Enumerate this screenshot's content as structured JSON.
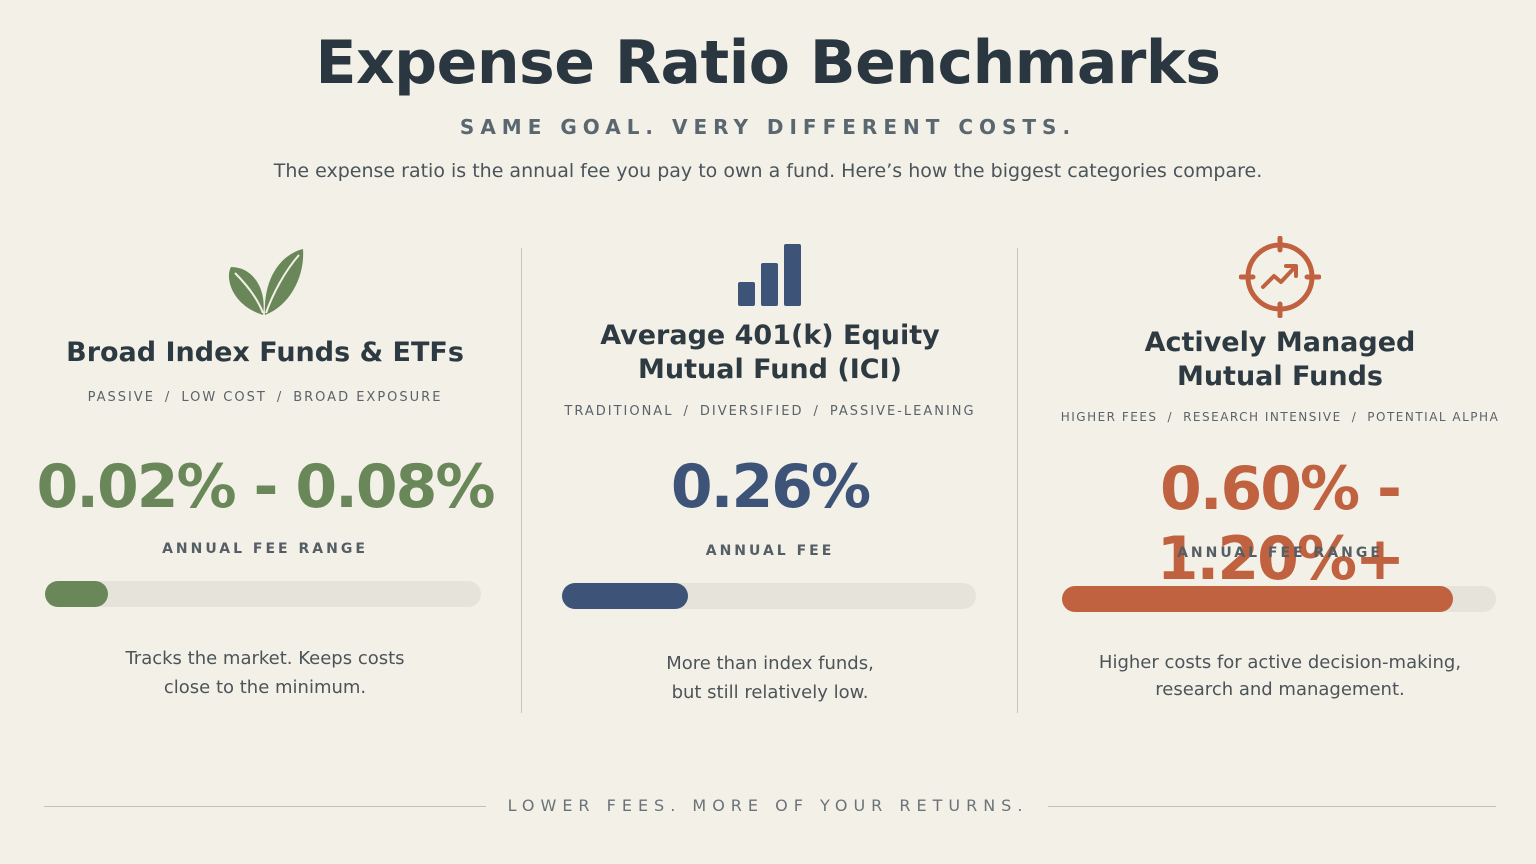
{
  "header": {
    "title": "Expense Ratio Benchmarks",
    "subtitle": "SAME GOAL. VERY DIFFERENT COSTS.",
    "intro": "The expense ratio is the annual fee you pay to own a fund. Here’s how the biggest categories compare."
  },
  "columns": [
    {
      "icon": "leaf-icon",
      "title": "Broad Index Funds & ETFs",
      "tags": [
        "PASSIVE",
        "LOW COST",
        "BROAD EXPOSURE"
      ],
      "value": "0.02% - 0.08%",
      "value_label": "ANNUAL FEE RANGE",
      "bar_fill": 0.145,
      "color": "#6a875a",
      "desc_line1": "Tracks the market. Keeps costs",
      "desc_line2": "close to the minimum."
    },
    {
      "icon": "bar-chart-icon",
      "title_line1": "Average 401(k) Equity",
      "title_line2": "Mutual Fund (ICI)",
      "tags": [
        "TRADITIONAL",
        "DIVERSIFIED",
        "PASSIVE-LEANING"
      ],
      "value": "0.26%",
      "value_label": "ANNUAL FEE",
      "bar_fill": 0.305,
      "color": "#3d5478",
      "desc_line1": "More than index funds,",
      "desc_line2": "but still relatively low."
    },
    {
      "icon": "target-trend-icon",
      "title_line1": "Actively Managed",
      "title_line2": "Mutual Funds",
      "tags": [
        "HIGHER FEES",
        "RESEARCH INTENSIVE",
        "POTENTIAL ALPHA"
      ],
      "value": "0.60% - 1.20%+",
      "value_label": "ANNUAL FEE RANGE",
      "bar_fill": 0.9,
      "color": "#c0623f",
      "desc_line1": "Higher costs for active decision-making,",
      "desc_line2": "research and management."
    }
  ],
  "footer": "LOWER FEES. MORE OF YOUR RETURNS."
}
